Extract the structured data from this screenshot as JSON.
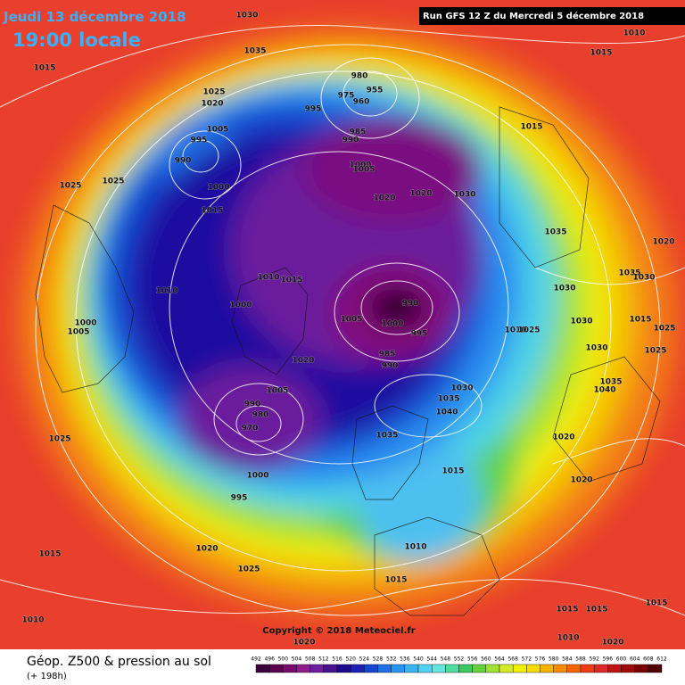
{
  "header": {
    "date": "Jeudi 13 décembre 2018",
    "time": "19:00 locale",
    "run": "Run GFS 12 Z du Mercredi 5 décembre 2018"
  },
  "copyright": "Copyright © 2018 Meteociel.fr",
  "footer": {
    "title": "Géop. Z500 & pression au sol",
    "lead": "(+ 198h)"
  },
  "legend": {
    "ticks": [
      492,
      496,
      500,
      504,
      508,
      512,
      516,
      520,
      524,
      528,
      532,
      536,
      540,
      544,
      548,
      552,
      556,
      560,
      564,
      568,
      572,
      576,
      580,
      584,
      588,
      592,
      596,
      600,
      604,
      608,
      612
    ],
    "colors": [
      "#3c003c",
      "#5a0050",
      "#780a6e",
      "#8c1e8c",
      "#6e1e9e",
      "#46148c",
      "#1e0a8c",
      "#1e1eb4",
      "#1446d2",
      "#1e6ee6",
      "#2896f0",
      "#3cb4f0",
      "#50d2f0",
      "#64e6dc",
      "#50dca0",
      "#3cc864",
      "#64d23c",
      "#a0e132",
      "#d2eb28",
      "#f0f000",
      "#f5dc00",
      "#f5b400",
      "#f58c00",
      "#f56400",
      "#f03c14",
      "#dc2828",
      "#be1414",
      "#a00a0a",
      "#780000",
      "#500000"
    ]
  },
  "pressure_labels": [
    1030,
    1035,
    1015,
    1025,
    1020,
    1005,
    995,
    990,
    1000,
    1015,
    1025,
    1025,
    1010,
    1000,
    1005,
    1000,
    1010,
    1015,
    1020,
    1005,
    990,
    980,
    970,
    1000,
    995,
    1025,
    1015,
    1020,
    1025,
    1010,
    1020,
    1010,
    1020,
    1015,
    1015,
    1015,
    1020,
    1020,
    1035,
    1040,
    1035,
    1030,
    1015,
    1010,
    1015,
    990,
    995,
    1000,
    1005,
    985,
    990,
    1030,
    1030,
    1030,
    1035,
    1030,
    1020,
    1035,
    1010,
    1025,
    1015,
    1025,
    1025,
    1035,
    1040,
    1030,
    1020,
    1020,
    1000,
    1005,
    990,
    985,
    995,
    980,
    975,
    955,
    960,
    1015,
    1015,
    1010
  ]
}
